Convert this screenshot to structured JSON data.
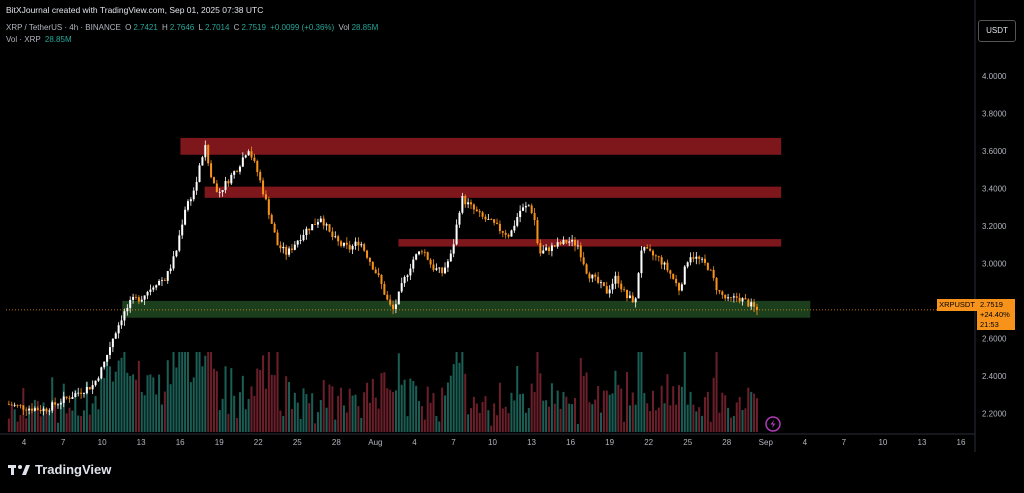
{
  "header": {
    "attribution": "BitXJournal created with TradingView.com, Sep 01, 2025 07:38 UTC",
    "symbol_line": {
      "symbol": "XRP / TetherUS · 4h · BINANCE",
      "open_label": "O",
      "open": "2.7421",
      "high_label": "H",
      "high": "2.7646",
      "low_label": "L",
      "low": "2.7014",
      "close_label": "C",
      "close": "2.7519",
      "change": "+0.0099 (+0.36%)",
      "vol_label": "Vol",
      "vol": "28.85M"
    },
    "volume_line": {
      "label": "Vol · XRP",
      "value": "28.85M"
    }
  },
  "price_axis": {
    "currency": "USDT",
    "ticks": [
      "4.0000",
      "3.8000",
      "3.6000",
      "3.4000",
      "3.2000",
      "3.0000",
      "2.6000",
      "2.4000",
      "2.2000"
    ]
  },
  "price_tag": {
    "symbol": "XRPUSDT",
    "price": "2.7519",
    "change_pct": "+24.40%",
    "countdown": "21:53"
  },
  "time_axis": {
    "labels": [
      "4",
      "7",
      "10",
      "13",
      "16",
      "19",
      "22",
      "25",
      "28",
      "Aug",
      "4",
      "7",
      "10",
      "13",
      "16",
      "19",
      "22",
      "25",
      "28",
      "Sep",
      "4",
      "7",
      "10",
      "13",
      "16"
    ]
  },
  "colors": {
    "up": "#ffffff",
    "down": "#f7931a",
    "resistance_zone": "#8b1a1f",
    "support_zone": "#1e4620",
    "volume_up": "#1b5e55",
    "volume_down": "#6b1f2a",
    "last_price_line": "#f7931a"
  },
  "chart_data": {
    "type": "candlestick",
    "symbol": "XRP / TetherUS",
    "interval": "4h",
    "exchange": "BINANCE",
    "y_range": [
      2.1,
      4.15
    ],
    "last_price": 2.7519,
    "zones": [
      {
        "type": "resistance",
        "from_x": 0.18,
        "to_x": 0.8,
        "low": 3.58,
        "high": 3.67
      },
      {
        "type": "resistance",
        "from_x": 0.205,
        "to_x": 0.8,
        "low": 3.35,
        "high": 3.41
      },
      {
        "type": "resistance",
        "from_x": 0.405,
        "to_x": 0.8,
        "low": 3.09,
        "high": 3.13
      },
      {
        "type": "support",
        "from_x": 0.12,
        "to_x": 0.83,
        "low": 2.71,
        "high": 2.8
      }
    ],
    "price_path": [
      [
        0.0,
        2.25
      ],
      [
        0.02,
        2.23
      ],
      [
        0.04,
        2.22
      ],
      [
        0.055,
        2.26
      ],
      [
        0.07,
        2.3
      ],
      [
        0.09,
        2.35
      ],
      [
        0.1,
        2.45
      ],
      [
        0.11,
        2.6
      ],
      [
        0.12,
        2.72
      ],
      [
        0.13,
        2.8
      ],
      [
        0.14,
        2.82
      ],
      [
        0.155,
        2.9
      ],
      [
        0.165,
        2.92
      ],
      [
        0.175,
        3.05
      ],
      [
        0.185,
        3.3
      ],
      [
        0.195,
        3.4
      ],
      [
        0.205,
        3.63
      ],
      [
        0.212,
        3.45
      ],
      [
        0.22,
        3.38
      ],
      [
        0.23,
        3.45
      ],
      [
        0.24,
        3.52
      ],
      [
        0.25,
        3.62
      ],
      [
        0.26,
        3.48
      ],
      [
        0.27,
        3.3
      ],
      [
        0.28,
        3.1
      ],
      [
        0.29,
        3.05
      ],
      [
        0.3,
        3.12
      ],
      [
        0.31,
        3.18
      ],
      [
        0.32,
        3.22
      ],
      [
        0.325,
        3.25
      ],
      [
        0.335,
        3.15
      ],
      [
        0.345,
        3.1
      ],
      [
        0.355,
        3.08
      ],
      [
        0.365,
        3.12
      ],
      [
        0.375,
        3.02
      ],
      [
        0.385,
        2.92
      ],
      [
        0.395,
        2.78
      ],
      [
        0.4,
        2.75
      ],
      [
        0.41,
        2.9
      ],
      [
        0.42,
        3.02
      ],
      [
        0.43,
        3.08
      ],
      [
        0.44,
        2.98
      ],
      [
        0.45,
        2.95
      ],
      [
        0.46,
        3.05
      ],
      [
        0.47,
        3.35
      ],
      [
        0.48,
        3.3
      ],
      [
        0.49,
        3.25
      ],
      [
        0.5,
        3.22
      ],
      [
        0.51,
        3.18
      ],
      [
        0.52,
        3.15
      ],
      [
        0.53,
        3.28
      ],
      [
        0.54,
        3.31
      ],
      [
        0.545,
        3.25
      ],
      [
        0.55,
        3.05
      ],
      [
        0.56,
        3.08
      ],
      [
        0.57,
        3.1
      ],
      [
        0.58,
        3.12
      ],
      [
        0.59,
        3.1
      ],
      [
        0.6,
        2.95
      ],
      [
        0.61,
        2.9
      ],
      [
        0.62,
        2.85
      ],
      [
        0.63,
        2.93
      ],
      [
        0.64,
        2.82
      ],
      [
        0.65,
        2.8
      ],
      [
        0.655,
        3.08
      ],
      [
        0.665,
        3.05
      ],
      [
        0.675,
        3.02
      ],
      [
        0.685,
        2.95
      ],
      [
        0.695,
        2.86
      ],
      [
        0.705,
        3.05
      ],
      [
        0.715,
        3.02
      ],
      [
        0.725,
        2.98
      ],
      [
        0.735,
        2.85
      ],
      [
        0.745,
        2.8
      ],
      [
        0.755,
        2.82
      ],
      [
        0.765,
        2.79
      ],
      [
        0.775,
        2.75
      ]
    ]
  }
}
